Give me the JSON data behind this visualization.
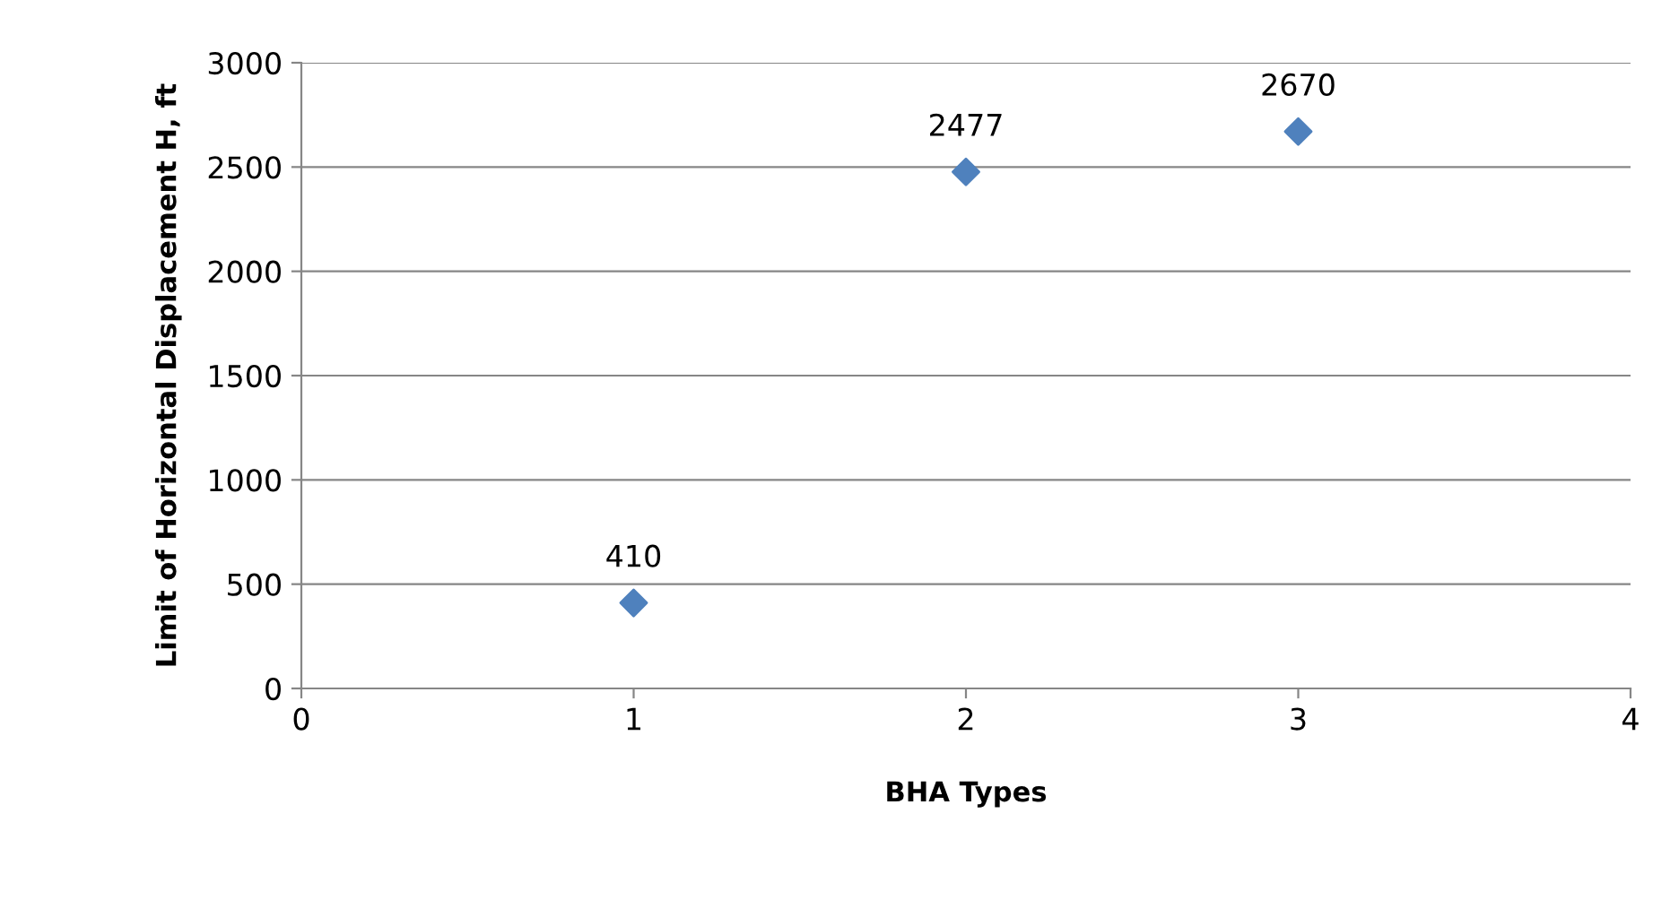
{
  "chart_data": {
    "type": "scatter",
    "xlabel": "BHA Types",
    "ylabel": "Limit of Horizontal Displacement H, ft",
    "x": [
      1,
      2,
      3
    ],
    "series": [
      {
        "color": "#4f81bd",
        "values": [
          410,
          2477,
          2670
        ]
      }
    ],
    "xlim": [
      0,
      4
    ],
    "xticks": [
      0,
      1,
      2,
      3,
      4
    ],
    "ylim": [
      0,
      3000
    ],
    "yticks": [
      0,
      500,
      1000,
      1500,
      2000,
      2500,
      3000
    ],
    "grid": "y",
    "marker": "diamond",
    "data_labels": true,
    "legend": false
  }
}
